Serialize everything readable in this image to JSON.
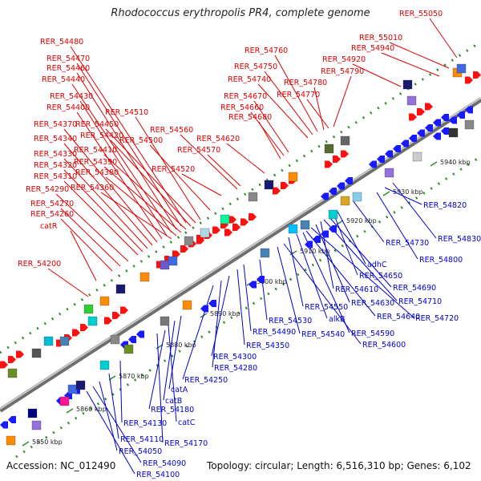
{
  "title": "Rhodococcus erythropolis PR4, complete genome",
  "accession": "Accession: NC_012490",
  "topology": "Topology: circular; Length: 6,516,310 bp; Genes: 6,102",
  "colors": {
    "top_label": "#dd0000",
    "bottom_label": "#0000cc",
    "backbone": "#888888",
    "forward_gene": "#ff1010",
    "reverse_gene": "#1a1aff",
    "tick": "#2e8b2e"
  },
  "kbp_labels": [
    "5850 kbp",
    "5860 kbp",
    "5870 kbp",
    "5880 kbp",
    "5890 kbp",
    "5900 kbp",
    "5910 kbp",
    "5920 kbp",
    "5930 kbp",
    "5940 kbp"
  ],
  "top_labels": [
    "RER_55050",
    "RER_55010",
    "RER_54940",
    "RER_54920",
    "RER_54480",
    "RER_54470",
    "RER_54460",
    "RER_54440",
    "RER_54430",
    "RER_54400",
    "RER_54370",
    "RER_54340",
    "RER_54330",
    "RER_54320",
    "RER_54310",
    "RER_54290",
    "RER_54270",
    "RER_54260",
    "catR",
    "RER_54200",
    "RER_54510",
    "RER_54450",
    "RER_54420",
    "RER_54410",
    "RER_54390",
    "RER_54380",
    "RER_54360",
    "RER_54560",
    "RER_54500",
    "RER_54570",
    "RER_54520",
    "RER_54620",
    "RER_54760",
    "RER_54750",
    "RER_54740",
    "RER_54670",
    "RER_54660",
    "RER_54680",
    "RER_54780",
    "RER_54790",
    "RER_54770"
  ],
  "bottom_labels": [
    "RER_54820",
    "RER_54830",
    "RER_54800",
    "RER_54730",
    "adhC",
    "RER_54650",
    "RER_54690",
    "RER_54610",
    "RER_54710",
    "RER_54630",
    "RER_54720",
    "RER_54550",
    "RER_54640",
    "alkB",
    "RER_54590",
    "RER_54530",
    "RER_54540",
    "RER_54600",
    "RER_54490",
    "RER_54350",
    "RER_54300",
    "RER_54280",
    "RER_54250",
    "catA",
    "catB",
    "catC",
    "RER_54180",
    "RER_54170",
    "RER_54130",
    "RER_54110",
    "RER_54050",
    "RER_54090",
    "RER_54100"
  ]
}
